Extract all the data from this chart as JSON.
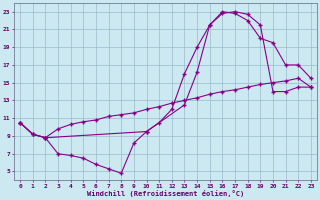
{
  "xlabel": "Windchill (Refroidissement éolien,°C)",
  "background_color": "#cce8f0",
  "grid_color": "#99bbcc",
  "line_color": "#880088",
  "xlim": [
    -0.5,
    23.5
  ],
  "ylim": [
    4,
    24
  ],
  "yticks": [
    5,
    7,
    9,
    11,
    13,
    15,
    17,
    19,
    21,
    23
  ],
  "xticks": [
    0,
    1,
    2,
    3,
    4,
    5,
    6,
    7,
    8,
    9,
    10,
    11,
    12,
    13,
    14,
    15,
    16,
    17,
    18,
    19,
    20,
    21,
    22,
    23
  ],
  "line1_x": [
    0,
    1,
    2,
    3,
    4,
    5,
    6,
    7,
    8,
    9,
    10,
    11,
    12,
    13,
    14,
    15,
    16,
    17,
    18,
    19,
    20,
    21,
    22,
    23
  ],
  "line1_y": [
    10.5,
    9.2,
    8.8,
    7.0,
    6.8,
    6.5,
    5.8,
    5.3,
    4.8,
    8.2,
    9.5,
    10.5,
    12.0,
    16.0,
    19.0,
    21.5,
    22.8,
    23.0,
    22.7,
    21.5,
    14.0,
    14.0,
    14.5,
    14.5
  ],
  "line2_x": [
    0,
    1,
    2,
    3,
    4,
    5,
    6,
    7,
    8,
    9,
    10,
    11,
    12,
    13,
    14,
    15,
    16,
    17,
    18,
    19,
    20,
    21,
    22,
    23
  ],
  "line2_y": [
    10.5,
    9.2,
    8.8,
    9.8,
    10.3,
    10.6,
    10.8,
    11.2,
    11.4,
    11.6,
    12.0,
    12.3,
    12.7,
    13.0,
    13.3,
    13.7,
    14.0,
    14.2,
    14.5,
    14.8,
    15.0,
    15.2,
    15.5,
    14.5
  ],
  "line3_x": [
    0,
    1,
    2,
    10,
    13,
    14,
    15,
    16,
    17,
    18,
    19,
    20,
    21,
    22,
    23
  ],
  "line3_y": [
    10.5,
    9.2,
    8.8,
    9.5,
    12.5,
    16.2,
    21.5,
    23.0,
    22.8,
    22.0,
    20.0,
    19.5,
    17.0,
    17.0,
    15.5
  ]
}
